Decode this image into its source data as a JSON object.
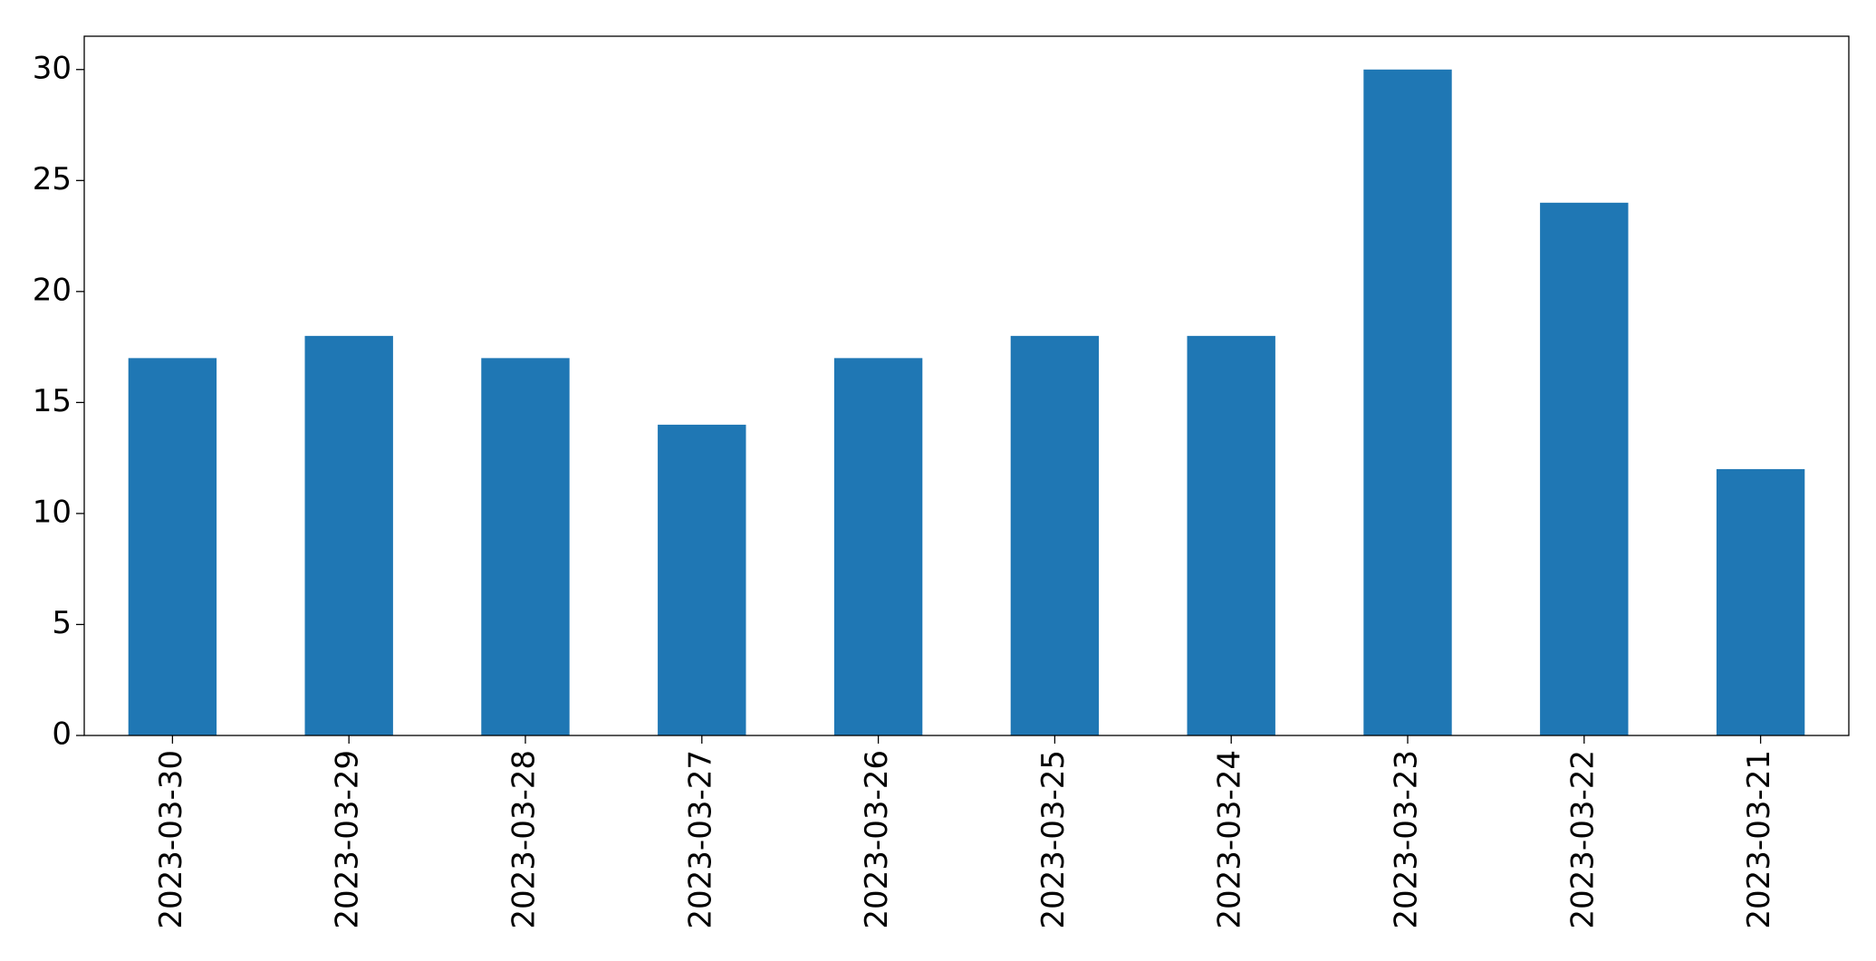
{
  "chart_data": {
    "type": "bar",
    "categories": [
      "2023-03-30",
      "2023-03-29",
      "2023-03-28",
      "2023-03-27",
      "2023-03-26",
      "2023-03-25",
      "2023-03-24",
      "2023-03-23",
      "2023-03-22",
      "2023-03-21"
    ],
    "values": [
      17,
      18,
      17,
      14,
      17,
      18,
      18,
      30,
      24,
      12
    ],
    "color": "#1f77b4",
    "ylim": [
      0,
      31.5
    ],
    "yticks": [
      0,
      5,
      10,
      15,
      20,
      25,
      30
    ],
    "grid": false
  }
}
